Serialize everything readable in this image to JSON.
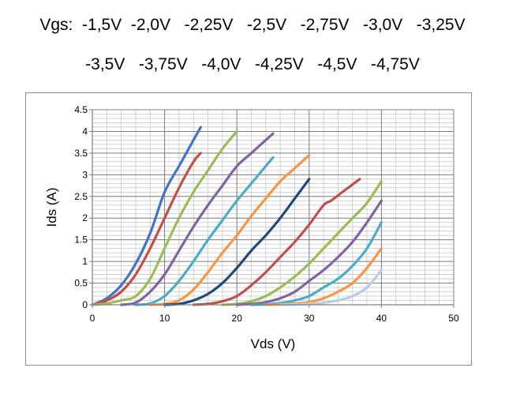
{
  "header": {
    "line1": "Vgs:  -1,5V  -2,0V   -2,25V   -2,5V   -2,75V   -3,0V   -3,25V",
    "line2": "-3,5V   -3,75V   -4,0V   -4,25V   -4,5V   -4,75V"
  },
  "chart_data": {
    "type": "line",
    "title": "",
    "xlabel": "Vds (V)",
    "ylabel": "Ids (A)",
    "xlim": [
      0,
      50
    ],
    "ylim": [
      0,
      4.5
    ],
    "x_ticks": [
      "0",
      "10",
      "20",
      "30",
      "40",
      "50"
    ],
    "y_ticks": [
      "0",
      "0.5",
      "1",
      "1.5",
      "2",
      "2.5",
      "3",
      "3.5",
      "4",
      "4.5"
    ],
    "grid": true,
    "legend": "none",
    "series": [
      {
        "color": "#4472c4",
        "points": [
          [
            0,
            0
          ],
          [
            2,
            0.15
          ],
          [
            4,
            0.45
          ],
          [
            6,
            0.95
          ],
          [
            8,
            1.65
          ],
          [
            10,
            2.6
          ],
          [
            12,
            3.2
          ],
          [
            14,
            3.8
          ],
          [
            15,
            4.1
          ]
        ]
      },
      {
        "color": "#c0504d",
        "points": [
          [
            0,
            0
          ],
          [
            2,
            0.1
          ],
          [
            4,
            0.3
          ],
          [
            6,
            0.7
          ],
          [
            8,
            1.3
          ],
          [
            10,
            2.0
          ],
          [
            12,
            2.7
          ],
          [
            14,
            3.3
          ],
          [
            15,
            3.5
          ]
        ]
      },
      {
        "color": "#9bbb59",
        "points": [
          [
            0,
            0
          ],
          [
            2,
            0.03
          ],
          [
            4,
            0.1
          ],
          [
            6,
            0.2
          ],
          [
            8,
            0.6
          ],
          [
            10,
            1.3
          ],
          [
            12,
            2.0
          ],
          [
            14,
            2.6
          ],
          [
            16,
            3.1
          ],
          [
            18,
            3.6
          ],
          [
            20,
            4.0
          ]
        ]
      },
      {
        "color": "#8064a2",
        "points": [
          [
            4,
            0
          ],
          [
            6,
            0.05
          ],
          [
            8,
            0.3
          ],
          [
            10,
            0.7
          ],
          [
            12,
            1.25
          ],
          [
            14,
            1.8
          ],
          [
            16,
            2.3
          ],
          [
            18,
            2.75
          ],
          [
            20,
            3.2
          ],
          [
            22,
            3.5
          ],
          [
            25,
            3.95
          ]
        ]
      },
      {
        "color": "#4bacc6",
        "points": [
          [
            6,
            0
          ],
          [
            8,
            0.03
          ],
          [
            10,
            0.2
          ],
          [
            12,
            0.55
          ],
          [
            14,
            1.0
          ],
          [
            16,
            1.5
          ],
          [
            18,
            1.95
          ],
          [
            20,
            2.4
          ],
          [
            22,
            2.8
          ],
          [
            25,
            3.4
          ]
        ]
      },
      {
        "color": "#f79646",
        "points": [
          [
            8,
            0
          ],
          [
            10,
            0.02
          ],
          [
            12,
            0.1
          ],
          [
            14,
            0.35
          ],
          [
            16,
            0.75
          ],
          [
            18,
            1.2
          ],
          [
            20,
            1.6
          ],
          [
            22,
            2.05
          ],
          [
            24,
            2.45
          ],
          [
            26,
            2.85
          ],
          [
            28,
            3.15
          ],
          [
            30,
            3.45
          ]
        ]
      },
      {
        "color": "#1f497d",
        "points": [
          [
            10,
            0
          ],
          [
            12,
            0.02
          ],
          [
            14,
            0.1
          ],
          [
            16,
            0.25
          ],
          [
            18,
            0.5
          ],
          [
            20,
            0.85
          ],
          [
            22,
            1.25
          ],
          [
            24,
            1.6
          ],
          [
            26,
            2.0
          ],
          [
            28,
            2.45
          ],
          [
            30,
            2.9
          ]
        ]
      },
      {
        "color": "#c0504d",
        "points": [
          [
            14,
            0
          ],
          [
            16,
            0.02
          ],
          [
            18,
            0.08
          ],
          [
            20,
            0.2
          ],
          [
            22,
            0.45
          ],
          [
            24,
            0.75
          ],
          [
            26,
            1.1
          ],
          [
            28,
            1.45
          ],
          [
            30,
            1.85
          ],
          [
            32,
            2.3
          ],
          [
            33,
            2.4
          ],
          [
            35,
            2.65
          ],
          [
            37,
            2.9
          ]
        ]
      },
      {
        "color": "#9bbb59",
        "points": [
          [
            18,
            0
          ],
          [
            20,
            0.02
          ],
          [
            22,
            0.08
          ],
          [
            24,
            0.2
          ],
          [
            26,
            0.4
          ],
          [
            28,
            0.65
          ],
          [
            30,
            0.95
          ],
          [
            32,
            1.3
          ],
          [
            34,
            1.65
          ],
          [
            36,
            2.0
          ],
          [
            38,
            2.35
          ],
          [
            40,
            2.85
          ]
        ]
      },
      {
        "color": "#8064a2",
        "points": [
          [
            20,
            0
          ],
          [
            22,
            0.02
          ],
          [
            24,
            0.06
          ],
          [
            26,
            0.15
          ],
          [
            28,
            0.3
          ],
          [
            30,
            0.55
          ],
          [
            32,
            0.8
          ],
          [
            34,
            1.1
          ],
          [
            36,
            1.45
          ],
          [
            38,
            1.9
          ],
          [
            40,
            2.4
          ]
        ]
      },
      {
        "color": "#4bacc6",
        "points": [
          [
            22,
            0
          ],
          [
            24,
            0.01
          ],
          [
            26,
            0.04
          ],
          [
            28,
            0.1
          ],
          [
            30,
            0.2
          ],
          [
            32,
            0.4
          ],
          [
            34,
            0.6
          ],
          [
            36,
            0.9
          ],
          [
            38,
            1.3
          ],
          [
            40,
            1.9
          ]
        ]
      },
      {
        "color": "#f79646",
        "points": [
          [
            24,
            0
          ],
          [
            26,
            0.01
          ],
          [
            28,
            0.03
          ],
          [
            30,
            0.06
          ],
          [
            32,
            0.15
          ],
          [
            34,
            0.3
          ],
          [
            36,
            0.5
          ],
          [
            38,
            0.85
          ],
          [
            40,
            1.3
          ]
        ]
      },
      {
        "color": "#b9cde5",
        "points": [
          [
            26,
            0
          ],
          [
            28,
            0.01
          ],
          [
            30,
            0.02
          ],
          [
            32,
            0.05
          ],
          [
            34,
            0.1
          ],
          [
            36,
            0.2
          ],
          [
            38,
            0.4
          ],
          [
            40,
            0.8
          ]
        ]
      }
    ]
  }
}
